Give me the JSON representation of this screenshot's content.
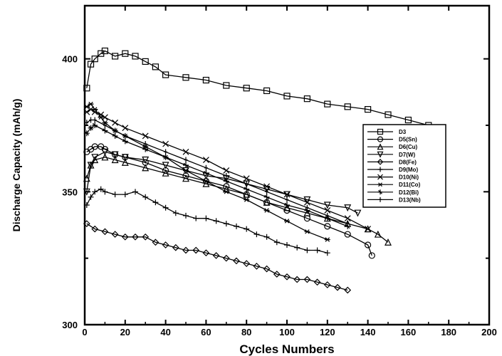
{
  "chart_data": {
    "type": "line",
    "title": "",
    "xlabel": "Cycles Numbers",
    "ylabel": "Discharge Capacity (mAh/g)",
    "xlim": [
      0,
      200
    ],
    "ylim": [
      300,
      420
    ],
    "xticks": [
      0,
      20,
      40,
      60,
      80,
      100,
      120,
      140,
      160,
      180,
      200
    ],
    "yticks": [
      300,
      350,
      400
    ],
    "grid": false,
    "legend_position": "right",
    "series": [
      {
        "name": "D3",
        "marker": "square",
        "x": [
          1,
          3,
          5,
          8,
          10,
          15,
          20,
          25,
          30,
          35,
          40,
          50,
          60,
          70,
          80,
          90,
          100,
          110,
          120,
          130,
          140,
          150,
          160,
          170
        ],
        "y": [
          389,
          398,
          400,
          402,
          403,
          401,
          402,
          401,
          399,
          397,
          394,
          393,
          392,
          390,
          389,
          388,
          386,
          385,
          383,
          382,
          381,
          379,
          377,
          375
        ]
      },
      {
        "name": "D5(Sn)",
        "marker": "circle",
        "x": [
          1,
          3,
          5,
          8,
          10,
          15,
          20,
          30,
          40,
          50,
          60,
          70,
          80,
          90,
          100,
          110,
          120,
          130,
          140,
          142
        ],
        "y": [
          365,
          366,
          367,
          367,
          366,
          364,
          363,
          361,
          358,
          356,
          354,
          352,
          349,
          346,
          343,
          340,
          337,
          334,
          330,
          326
        ]
      },
      {
        "name": "D6(Cu)",
        "marker": "triangle-up",
        "x": [
          1,
          3,
          5,
          10,
          15,
          20,
          30,
          40,
          50,
          60,
          70,
          80,
          90,
          100,
          110,
          120,
          130,
          140,
          145,
          150
        ],
        "y": [
          355,
          360,
          362,
          363,
          362,
          361,
          359,
          357,
          355,
          353,
          351,
          349,
          346,
          344,
          342,
          340,
          338,
          336,
          334,
          331
        ]
      },
      {
        "name": "D7(W)",
        "marker": "triangle-down",
        "x": [
          1,
          3,
          5,
          10,
          15,
          20,
          30,
          40,
          50,
          60,
          70,
          80,
          90,
          100,
          110,
          120,
          130,
          135
        ],
        "y": [
          350,
          360,
          363,
          365,
          364,
          363,
          362,
          360,
          358,
          356,
          355,
          353,
          351,
          349,
          347,
          345,
          344,
          342
        ]
      },
      {
        "name": "D8(Fe)",
        "marker": "diamond",
        "x": [
          1,
          5,
          10,
          15,
          20,
          25,
          30,
          35,
          40,
          45,
          50,
          55,
          60,
          65,
          70,
          75,
          80,
          85,
          90,
          95,
          100,
          105,
          110,
          115,
          120,
          125,
          130
        ],
        "y": [
          338,
          336,
          335,
          334,
          333,
          333,
          333,
          331,
          330,
          329,
          328,
          328,
          327,
          326,
          325,
          324,
          323,
          322,
          321,
          319,
          318,
          317,
          317,
          316,
          315,
          314,
          313
        ]
      },
      {
        "name": "D9(Mo)",
        "marker": "plus",
        "x": [
          1,
          3,
          5,
          8,
          10,
          15,
          20,
          25,
          30,
          35,
          40,
          45,
          50,
          55,
          60,
          65,
          70,
          75,
          80,
          85,
          90,
          95,
          100,
          105,
          110,
          115,
          120
        ],
        "y": [
          345,
          348,
          350,
          351,
          350,
          349,
          349,
          350,
          348,
          346,
          344,
          342,
          341,
          340,
          340,
          339,
          338,
          337,
          336,
          334,
          333,
          331,
          330,
          329,
          328,
          328,
          327
        ]
      },
      {
        "name": "D10(Ni)",
        "marker": "x",
        "x": [
          1,
          3,
          5,
          8,
          10,
          15,
          20,
          30,
          40,
          50,
          60,
          70,
          80,
          90,
          100,
          110,
          120,
          130,
          140
        ],
        "y": [
          380,
          381,
          380,
          379,
          378,
          376,
          374,
          371,
          368,
          365,
          362,
          358,
          355,
          352,
          349,
          346,
          343,
          340,
          336
        ]
      },
      {
        "name": "D11(Co)",
        "marker": "asterisk",
        "x": [
          1,
          3,
          5,
          8,
          10,
          15,
          20,
          30,
          40,
          50,
          60,
          70,
          80,
          90,
          100,
          110,
          120
        ],
        "y": [
          382,
          383,
          381,
          378,
          376,
          373,
          371,
          367,
          363,
          358,
          354,
          350,
          347,
          343,
          339,
          335,
          332
        ]
      },
      {
        "name": "D12(Bi)",
        "marker": "star",
        "x": [
          1,
          3,
          5,
          10,
          15,
          20,
          30,
          40,
          50,
          60,
          70,
          80,
          90,
          100,
          110,
          120,
          130
        ],
        "y": [
          372,
          374,
          375,
          373,
          371,
          369,
          366,
          363,
          360,
          357,
          354,
          351,
          348,
          345,
          343,
          340,
          337
        ]
      },
      {
        "name": "D13(Nb)",
        "marker": "vline",
        "x": [
          1,
          3,
          5,
          10,
          15,
          20,
          30,
          40,
          50,
          60,
          70,
          80,
          90,
          100,
          110,
          120,
          130
        ],
        "y": [
          376,
          377,
          377,
          375,
          373,
          371,
          368,
          365,
          362,
          359,
          356,
          353,
          350,
          347,
          344,
          341,
          338
        ]
      }
    ]
  }
}
